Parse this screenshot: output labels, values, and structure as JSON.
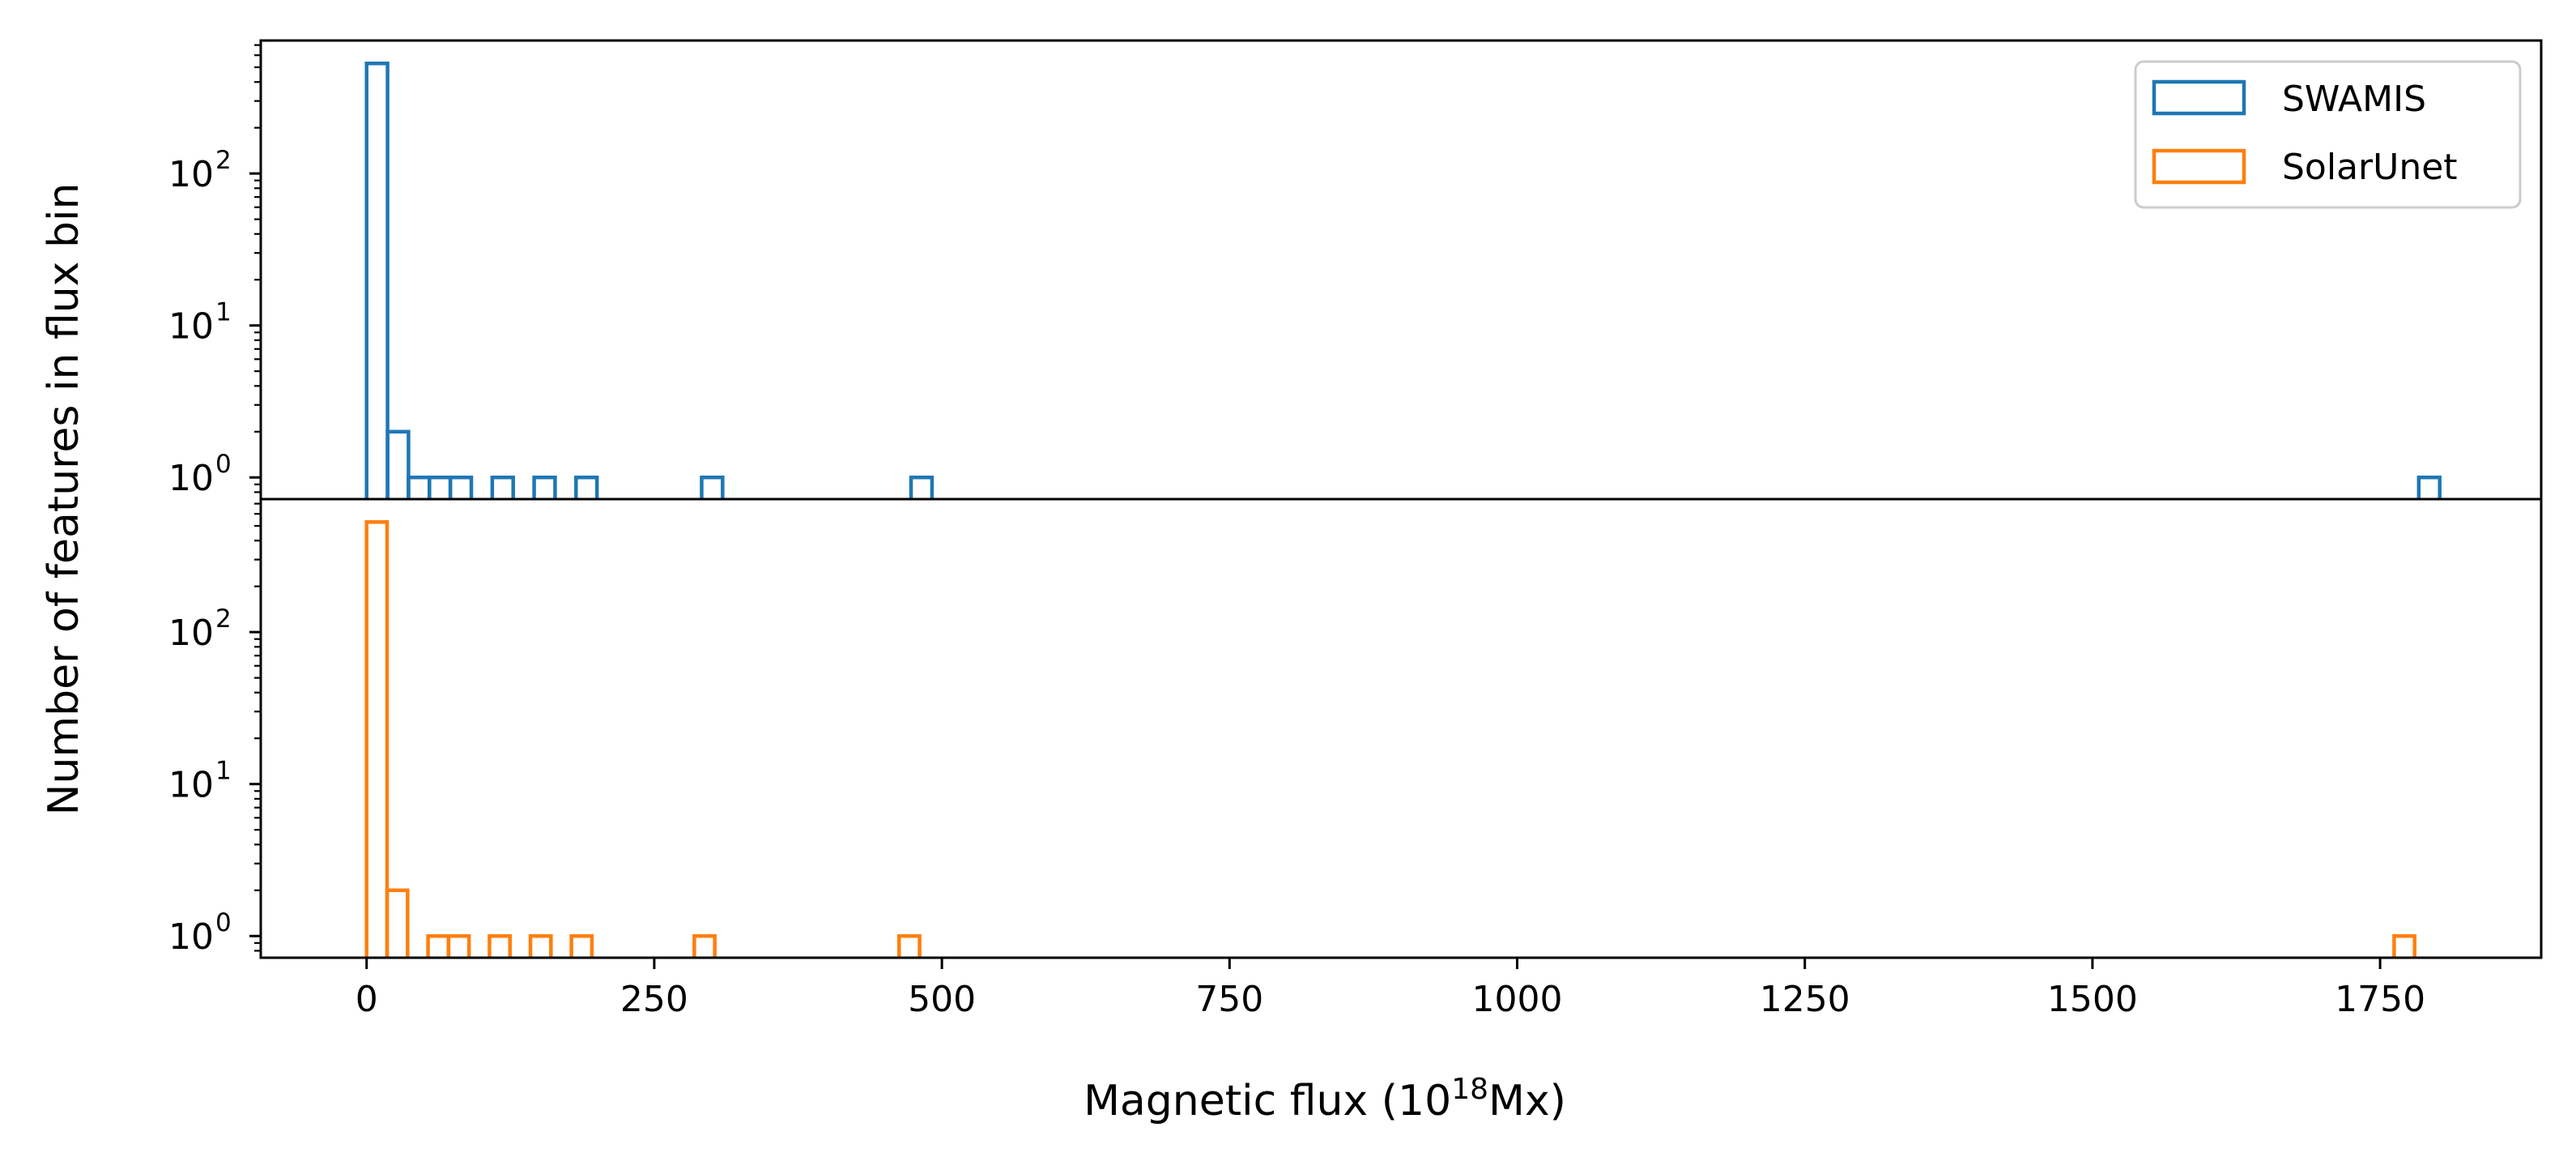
{
  "chart_data": {
    "type": "histogram",
    "layout": "two vertically stacked panels sharing the x axis",
    "xlabel": "Magnetic flux (10",
    "xlabel_exponent": "18",
    "xlabel_suffix": "Mx)",
    "ylabel": "Number of features in flux bin",
    "xlim": [
      -92,
      1890
    ],
    "xticks": [
      0,
      250,
      500,
      750,
      1000,
      1250,
      1500,
      1750
    ],
    "xtick_labels": [
      "0",
      "250",
      "500",
      "750",
      "1000",
      "1250",
      "1500",
      "1750"
    ],
    "y_scale": "log",
    "ylim": [
      0.72,
      750
    ],
    "yticks": [
      1,
      10,
      100
    ],
    "ytick_labels": [
      "10",
      "10",
      "10"
    ],
    "ytick_exponents": [
      "0",
      "1",
      "2"
    ],
    "legend": {
      "placement": "top-right of upper panel",
      "entries": [
        "SWAMIS",
        "SolarUnet"
      ]
    },
    "series": [
      {
        "name": "SWAMIS",
        "color": "#1f77b4",
        "panel": "top",
        "bin_width": 18.2,
        "bins": [
          {
            "x0": 0,
            "count": 530
          },
          {
            "x0": 18.2,
            "count": 2
          },
          {
            "x0": 36.4,
            "count": 1
          },
          {
            "x0": 54.6,
            "count": 1
          },
          {
            "x0": 72.8,
            "count": 1
          },
          {
            "x0": 109.2,
            "count": 1
          },
          {
            "x0": 145.6,
            "count": 1
          },
          {
            "x0": 182,
            "count": 1
          },
          {
            "x0": 291.2,
            "count": 1
          },
          {
            "x0": 473.2,
            "count": 1
          },
          {
            "x0": 1783.6,
            "count": 1
          }
        ]
      },
      {
        "name": "SolarUnet",
        "color": "#ff7f0e",
        "panel": "bottom",
        "bin_width": 17.8,
        "bins": [
          {
            "x0": 0,
            "count": 530
          },
          {
            "x0": 17.8,
            "count": 2
          },
          {
            "x0": 53.4,
            "count": 1
          },
          {
            "x0": 71.2,
            "count": 1
          },
          {
            "x0": 106.8,
            "count": 1
          },
          {
            "x0": 142.4,
            "count": 1
          },
          {
            "x0": 178,
            "count": 1
          },
          {
            "x0": 284.8,
            "count": 1
          },
          {
            "x0": 462.8,
            "count": 1
          },
          {
            "x0": 1762.2,
            "count": 1
          }
        ]
      }
    ]
  }
}
